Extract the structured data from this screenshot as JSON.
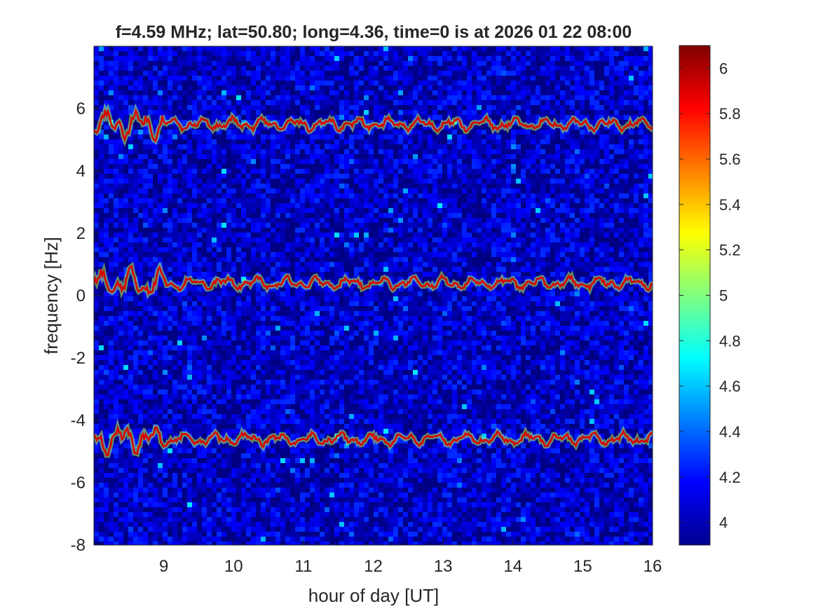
{
  "chart_data": {
    "type": "heatmap",
    "title": "f=4.59 MHz;  lat=50.80; long=4.36, time=0 is at 2026 01 22 08:00",
    "xlabel": "hour of day [UT]",
    "ylabel": "frequency [Hz]",
    "xlim": [
      8,
      16
    ],
    "ylim": [
      -8,
      8
    ],
    "x_ticks": [
      "9",
      "10",
      "11",
      "12",
      "13",
      "14",
      "15",
      "16"
    ],
    "y_ticks": [
      "-8",
      "-6",
      "-4",
      "-2",
      "0",
      "2",
      "4",
      "6"
    ],
    "colorbar": {
      "colormap": "jet",
      "range": [
        3.9,
        6.1
      ],
      "ticks": [
        "4",
        "4.2",
        "4.4",
        "4.6",
        "4.8",
        "5",
        "5.2",
        "5.4",
        "5.6",
        "5.8",
        "6"
      ]
    },
    "background_level": 4.05,
    "traces": [
      {
        "center_hz": 5.5,
        "level": 5.9
      },
      {
        "center_hz": 0.4,
        "level": 5.9
      },
      {
        "center_hz": -4.6,
        "level": 5.9
      }
    ],
    "grid": false,
    "legend": "none"
  }
}
